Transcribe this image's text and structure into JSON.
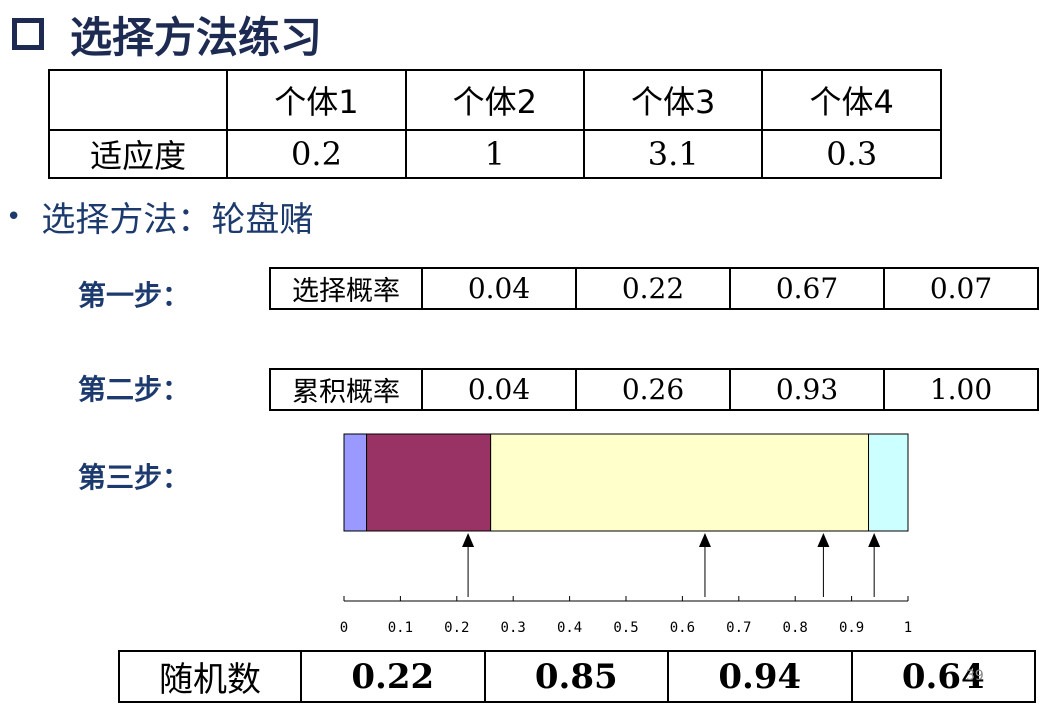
{
  "title": "选择方法练习",
  "fitness_table": {
    "headers": [
      "",
      "个体1",
      "个体2",
      "个体3",
      "个体4"
    ],
    "row_label": "适应度",
    "values": [
      "0.2",
      "1",
      "3.1",
      "0.3"
    ]
  },
  "bullet": "选择方法：轮盘赌",
  "step1": {
    "label": "第一步：",
    "row_label": "选择概率",
    "values": [
      "0.04",
      "0.22",
      "0.67",
      "0.07"
    ]
  },
  "step2": {
    "label": "第二步：",
    "row_label": "累积概率",
    "values": [
      "0.04",
      "0.26",
      "0.93",
      "1.00"
    ]
  },
  "step3": {
    "label": "第三步："
  },
  "wheel": {
    "segments": [
      {
        "end": 0.04,
        "color": "#9999ff"
      },
      {
        "end": 0.26,
        "color": "#993366"
      },
      {
        "end": 0.93,
        "color": "#ffffcc"
      },
      {
        "end": 1.0,
        "color": "#ccffff"
      }
    ],
    "ticks": [
      "0",
      "0.1",
      "0.2",
      "0.3",
      "0.4",
      "0.5",
      "0.6",
      "0.7",
      "0.8",
      "0.9",
      "1"
    ],
    "arrows": [
      0.22,
      0.64,
      0.85,
      0.94
    ]
  },
  "random_table": {
    "row_label": "随机数",
    "values": [
      "0.22",
      "0.85",
      "0.94",
      "0.64"
    ]
  },
  "page_number": "39"
}
